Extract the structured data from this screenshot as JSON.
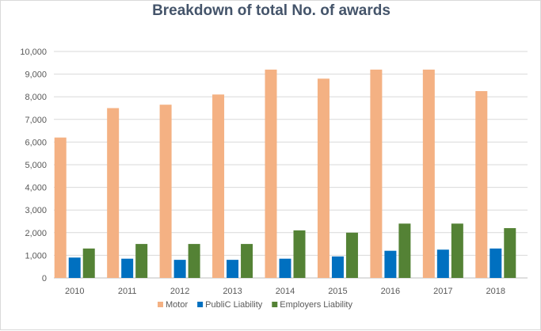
{
  "chart_data": {
    "type": "bar",
    "title": "Breakdown of total No. of awards",
    "xlabel": "",
    "ylabel": "",
    "categories": [
      "2010",
      "2011",
      "2012",
      "2013",
      "2014",
      "2015",
      "2016",
      "2017",
      "2018"
    ],
    "series": [
      {
        "name": "Motor",
        "color": "#f4b183",
        "values": [
          6200,
          7500,
          7650,
          8100,
          9200,
          8800,
          9200,
          9200,
          8250
        ]
      },
      {
        "name": "PubliC Liability",
        "color": "#0070c0",
        "values": [
          900,
          850,
          800,
          800,
          850,
          950,
          1200,
          1250,
          1300
        ]
      },
      {
        "name": "Employers Liability",
        "color": "#548235",
        "values": [
          1300,
          1500,
          1500,
          1500,
          2100,
          2000,
          2400,
          2400,
          2200
        ]
      }
    ],
    "ylim": [
      0,
      10000
    ],
    "yticks": [
      0,
      1000,
      2000,
      3000,
      4000,
      5000,
      6000,
      7000,
      8000,
      9000,
      10000
    ],
    "ytick_labels": [
      "0",
      "1,000",
      "2,000",
      "3,000",
      "4,000",
      "5,000",
      "6,000",
      "7,000",
      "8,000",
      "9,000",
      "10,000"
    ],
    "grid": true,
    "legend_position": "bottom"
  }
}
